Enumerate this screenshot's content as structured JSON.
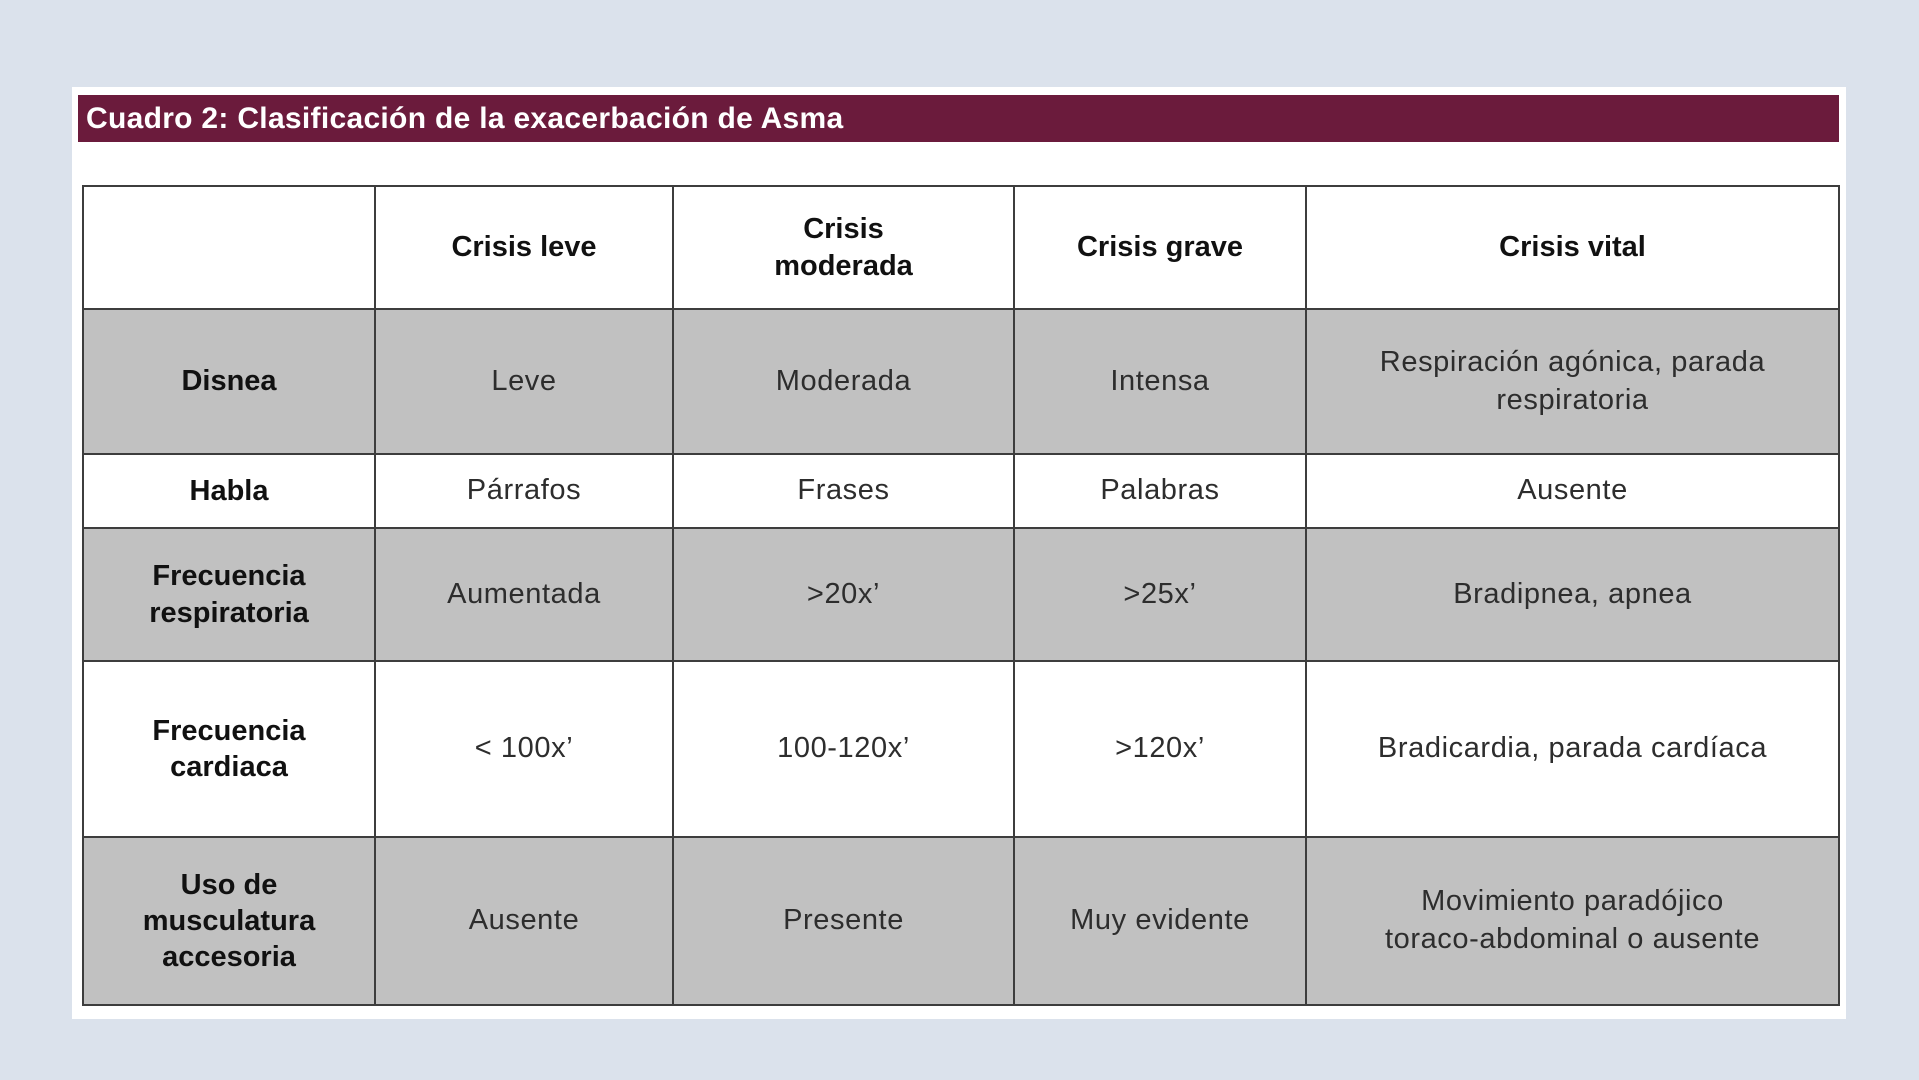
{
  "header": {
    "title": "Cuadro 2: Clasificación de la exacerbación de Asma"
  },
  "colors": {
    "title_bar_background": "#6b1b3c",
    "title_text": "#ffffff",
    "shaded_row_background": "#c1c1c1",
    "unshaded_row_background": "#ffffff",
    "table_border": "#3d3d3d",
    "page_background": "#dbe2ec"
  },
  "table": {
    "column_headers": [
      "",
      "Crisis leve",
      "Crisis\nmoderada",
      "Crisis grave",
      "Crisis vital"
    ],
    "rows": [
      {
        "label": "Disnea",
        "shaded": true,
        "cells": [
          "Leve",
          "Moderada",
          "Intensa",
          "Respiración agónica, parada\nrespiratoria"
        ]
      },
      {
        "label": "Habla",
        "shaded": false,
        "cells": [
          "Párrafos",
          "Frases",
          "Palabras",
          "Ausente"
        ]
      },
      {
        "label": "Frecuencia\nrespiratoria",
        "shaded": true,
        "cells": [
          "Aumentada",
          ">20x’",
          ">25x’",
          "Bradipnea, apnea"
        ]
      },
      {
        "label": "Frecuencia\ncardiaca",
        "shaded": false,
        "cells": [
          "< 100x’",
          "100-120x’",
          ">120x’",
          "Bradicardia, parada cardíaca"
        ]
      },
      {
        "label": "Uso de\nmusculatura\naccesoria",
        "shaded": true,
        "cells": [
          "Ausente",
          "Presente",
          "Muy evidente",
          "Movimiento paradójico\ntoraco-abdominal o ausente"
        ]
      }
    ]
  }
}
